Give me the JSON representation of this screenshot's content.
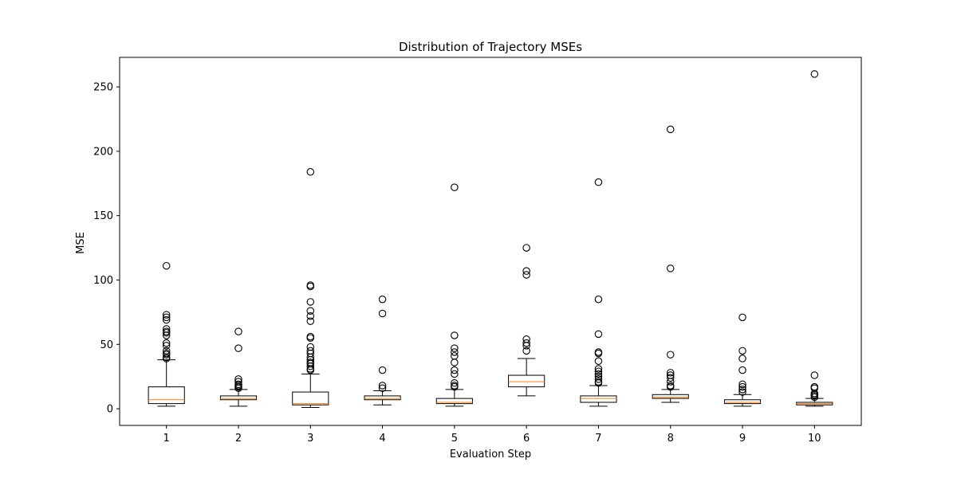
{
  "chart_data": {
    "type": "boxplot",
    "title": "Distribution of Trajectory MSEs",
    "xlabel": "Evaluation Step",
    "ylabel": "MSE",
    "ylim": [
      -12.95,
      272.95
    ],
    "yticks": [
      0,
      50,
      100,
      150,
      200,
      250
    ],
    "categories": [
      "1",
      "2",
      "3",
      "4",
      "5",
      "6",
      "7",
      "8",
      "9",
      "10"
    ],
    "grid": false,
    "colors": {
      "box": "#000000",
      "median": "#ff7f0e",
      "flier": "#000000"
    },
    "boxes": [
      {
        "label": "1",
        "whislo": 2,
        "q1": 4,
        "med": 7,
        "q3": 17,
        "whishi": 38,
        "fliers": [
          111,
          73,
          71,
          69,
          62,
          60,
          59,
          57,
          51,
          49,
          45,
          43,
          42,
          40,
          39
        ]
      },
      {
        "label": "2",
        "whislo": 2,
        "q1": 7,
        "med": 8,
        "q3": 10,
        "whishi": 15,
        "fliers": [
          60,
          47,
          23,
          21,
          19,
          18,
          17,
          16
        ]
      },
      {
        "label": "3",
        "whislo": 1,
        "q1": 3,
        "med": 4,
        "q3": 13,
        "whishi": 27,
        "fliers": [
          184,
          96,
          95,
          83,
          76,
          72,
          68,
          56,
          55,
          48,
          45,
          43,
          40,
          38,
          36,
          35,
          33,
          31,
          30
        ]
      },
      {
        "label": "4",
        "whislo": 3,
        "q1": 7,
        "med": 8,
        "q3": 10,
        "whishi": 14,
        "fliers": [
          85,
          74,
          30,
          18,
          16
        ]
      },
      {
        "label": "5",
        "whislo": 2,
        "q1": 4,
        "med": 5,
        "q3": 8,
        "whishi": 15,
        "fliers": [
          172,
          57,
          47,
          44,
          41,
          36,
          30,
          27,
          20,
          18,
          17
        ]
      },
      {
        "label": "6",
        "whislo": 10,
        "q1": 17,
        "med": 21,
        "q3": 26,
        "whishi": 39,
        "fliers": [
          125,
          107,
          104,
          54,
          51,
          49,
          45
        ]
      },
      {
        "label": "7",
        "whislo": 2,
        "q1": 5,
        "med": 8,
        "q3": 10,
        "whishi": 18,
        "fliers": [
          176,
          85,
          58,
          44,
          43,
          37,
          31,
          29,
          27,
          25,
          23,
          21,
          20
        ]
      },
      {
        "label": "8",
        "whislo": 5,
        "q1": 8,
        "med": 9,
        "q3": 11,
        "whishi": 15,
        "fliers": [
          217,
          109,
          42,
          28,
          26,
          24,
          21,
          18,
          17
        ]
      },
      {
        "label": "9",
        "whislo": 2,
        "q1": 4,
        "med": 5,
        "q3": 7,
        "whishi": 11,
        "fliers": [
          71,
          45,
          39,
          30,
          19,
          17,
          15,
          13
        ]
      },
      {
        "label": "10",
        "whislo": 2,
        "q1": 3,
        "med": 4,
        "q3": 5,
        "whishi": 8,
        "fliers": [
          260,
          26,
          17,
          16,
          12,
          11,
          10,
          9
        ]
      }
    ]
  }
}
